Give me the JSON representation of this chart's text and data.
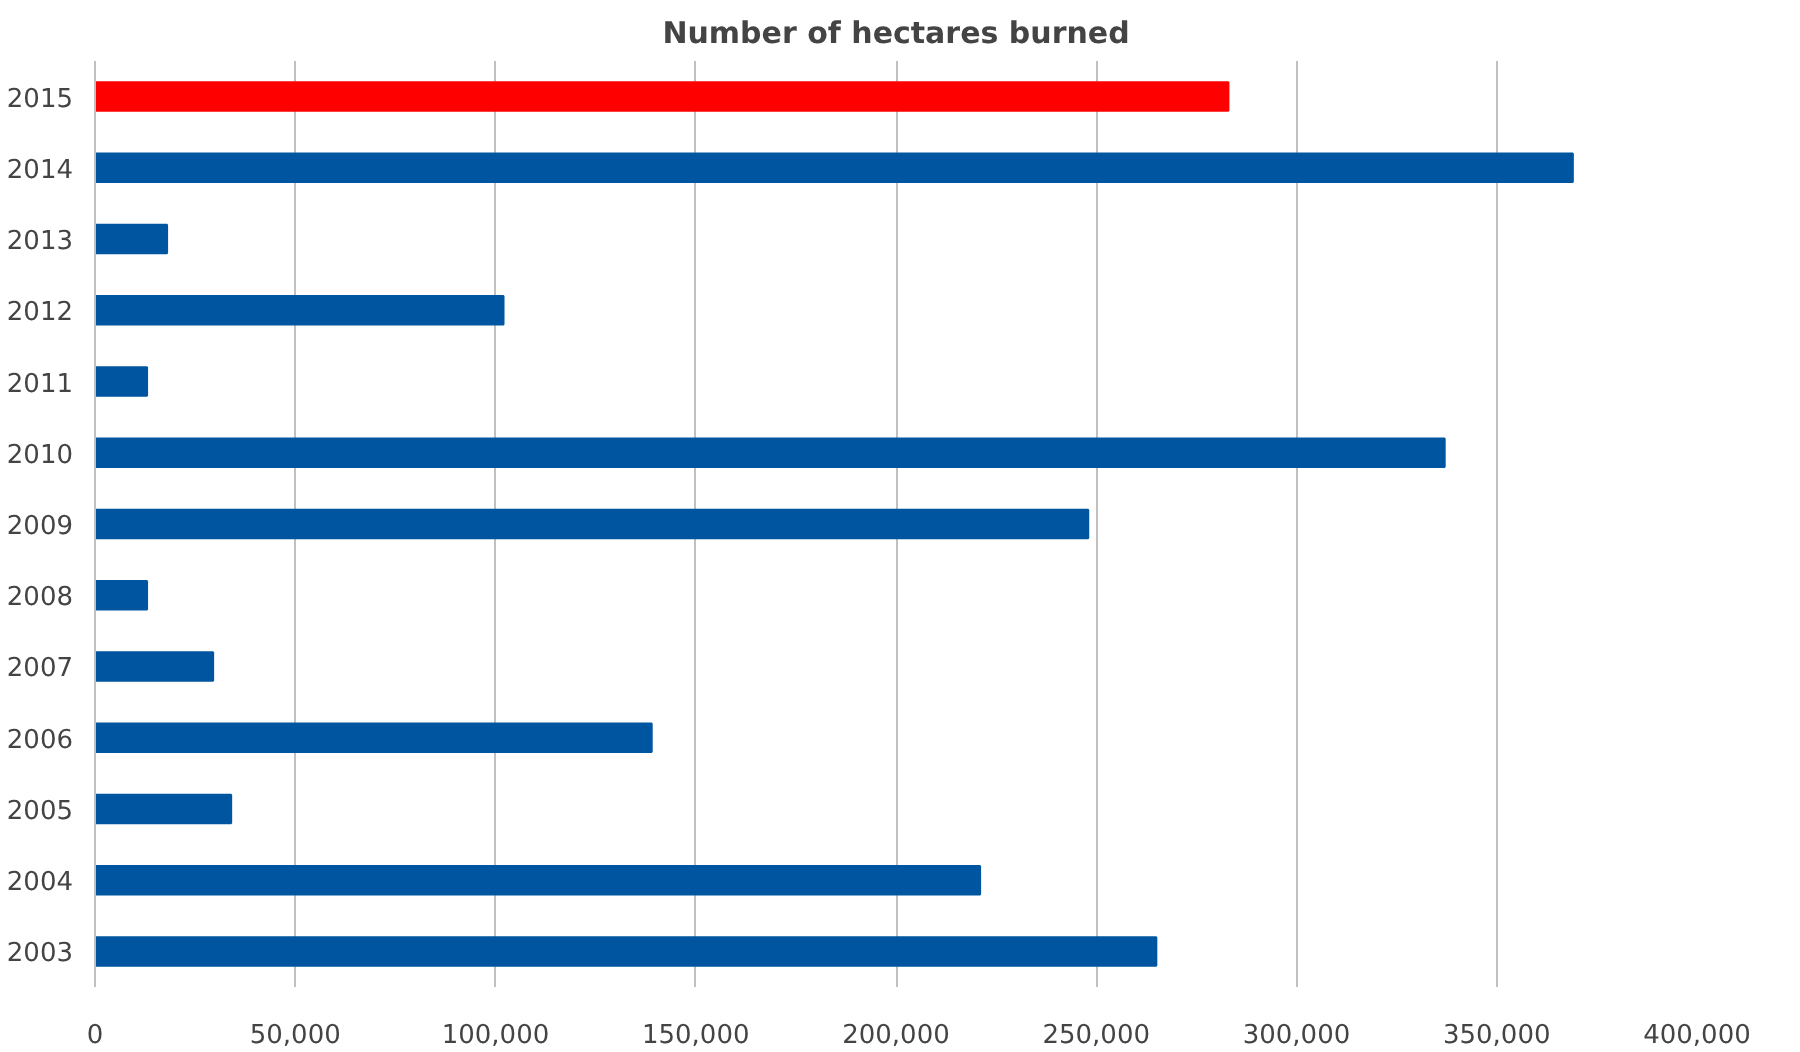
{
  "chart_data": {
    "type": "bar",
    "orientation": "horizontal",
    "title": "Number of hectares burned",
    "categories": [
      "2015",
      "2014",
      "2013",
      "2012",
      "2011",
      "2010",
      "2009",
      "2008",
      "2007",
      "2006",
      "2005",
      "2004",
      "2003"
    ],
    "values": [
      283000,
      369000,
      18000,
      102000,
      13000,
      337000,
      248000,
      13000,
      29500,
      139000,
      34000,
      221000,
      265000
    ],
    "colors": [
      "#ff0000",
      "#0055a0",
      "#0055a0",
      "#0055a0",
      "#0055a0",
      "#0055a0",
      "#0055a0",
      "#0055a0",
      "#0055a0",
      "#0055a0",
      "#0055a0",
      "#0055a0",
      "#0055a0"
    ],
    "xlim": [
      0,
      400000
    ],
    "xticks": [
      0,
      {
        "value": 50000,
        "label": "50,000"
      },
      {
        "value": 100000,
        "label": "100,000"
      },
      {
        "value": 150000,
        "label": "150,000"
      },
      {
        "value": 200000,
        "label": "200,000"
      },
      {
        "value": 250000,
        "label": "250,000"
      },
      {
        "value": 300000,
        "label": "300,000"
      },
      {
        "value": 350000,
        "label": "350,000"
      },
      {
        "value": 400000,
        "label": "400,000"
      }
    ],
    "grid": "x"
  }
}
